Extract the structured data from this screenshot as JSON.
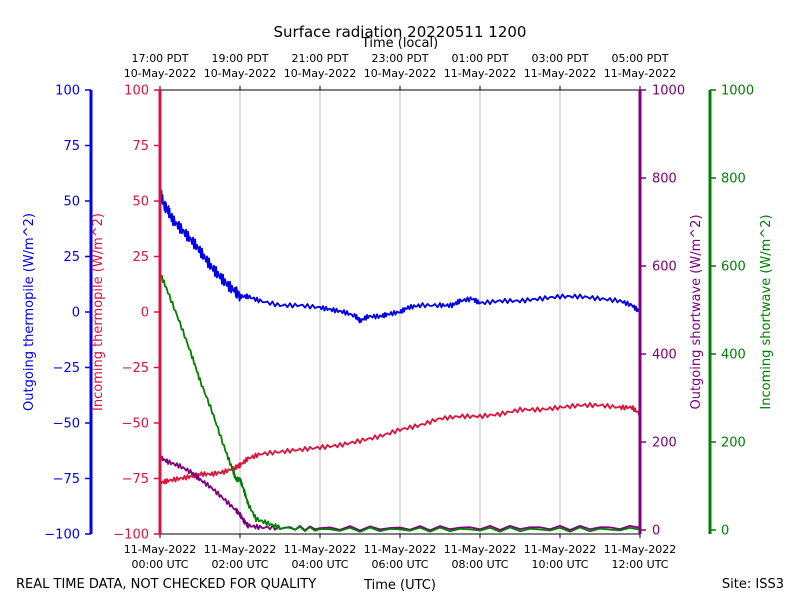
{
  "chart_data": {
    "type": "line",
    "title": "Surface radiation 20220511 1200",
    "top_axis_label": "Time (local)",
    "xlabel": "Time (UTC)",
    "footer_left": "REAL TIME DATA, NOT CHECKED FOR QUALITY",
    "footer_right": "Site: ISS3",
    "x_range_hours_utc": [
      0,
      12
    ],
    "bottom_ticks": [
      {
        "hour": 0,
        "line1": "11-May-2022",
        "line2": "00:00 UTC"
      },
      {
        "hour": 2,
        "line1": "11-May-2022",
        "line2": "02:00 UTC"
      },
      {
        "hour": 4,
        "line1": "11-May-2022",
        "line2": "04:00 UTC"
      },
      {
        "hour": 6,
        "line1": "11-May-2022",
        "line2": "06:00 UTC"
      },
      {
        "hour": 8,
        "line1": "11-May-2022",
        "line2": "08:00 UTC"
      },
      {
        "hour": 10,
        "line1": "11-May-2022",
        "line2": "10:00 UTC"
      },
      {
        "hour": 12,
        "line1": "11-May-2022",
        "line2": "12:00 UTC"
      }
    ],
    "top_ticks": [
      {
        "hour": 0,
        "line1": "17:00 PDT",
        "line2": "10-May-2022"
      },
      {
        "hour": 2,
        "line1": "19:00 PDT",
        "line2": "10-May-2022"
      },
      {
        "hour": 4,
        "line1": "21:00 PDT",
        "line2": "10-May-2022"
      },
      {
        "hour": 6,
        "line1": "23:00 PDT",
        "line2": "10-May-2022"
      },
      {
        "hour": 8,
        "line1": "01:00 PDT",
        "line2": "11-May-2022"
      },
      {
        "hour": 10,
        "line1": "03:00 PDT",
        "line2": "11-May-2022"
      },
      {
        "hour": 12,
        "line1": "05:00 PDT",
        "line2": "11-May-2022"
      }
    ],
    "grid": "vertical",
    "axes": {
      "outgoing_thermopile": {
        "label": "Outgoing thermopile (W/m^2)",
        "color": "#0000ee",
        "range": [
          -100,
          100
        ],
        "ticks": [
          "100",
          "75",
          "50",
          "25",
          "0",
          "−25",
          "−50",
          "−75",
          "−100"
        ],
        "tick_values": [
          100,
          75,
          50,
          25,
          0,
          -25,
          -50,
          -75,
          -100
        ]
      },
      "incoming_thermopile": {
        "label": "Incoming thermopile (W/m^2)",
        "color": "#dc143c",
        "range": [
          -100,
          100
        ],
        "ticks": [
          "100",
          "75",
          "50",
          "25",
          "0",
          "−25",
          "−50",
          "−75",
          "−100"
        ],
        "tick_values": [
          100,
          75,
          50,
          25,
          0,
          -25,
          -50,
          -75,
          -100
        ]
      },
      "outgoing_shortwave": {
        "label": "Outgoing shortwave (W/m^2)",
        "color": "#800080",
        "range": [
          0,
          1000
        ],
        "ticks": [
          "1000",
          "800",
          "600",
          "400",
          "200",
          "0"
        ],
        "tick_values": [
          1000,
          800,
          600,
          400,
          200,
          0
        ]
      },
      "incoming_shortwave": {
        "label": "Incoming shortwave (W/m^2)",
        "color": "#008000",
        "range": [
          0,
          1000
        ],
        "ticks": [
          "1000",
          "800",
          "600",
          "400",
          "200",
          "0"
        ],
        "tick_values": [
          1000,
          800,
          600,
          400,
          200,
          0
        ]
      }
    },
    "series": [
      {
        "axis": "outgoing_thermopile",
        "x": [
          0,
          0.1,
          0.2,
          0.3,
          0.5,
          0.7,
          0.9,
          1.1,
          1.3,
          1.5,
          1.7,
          1.9,
          2.0,
          2.2,
          2.5,
          3.0,
          3.5,
          4.0,
          4.3,
          4.6,
          4.9,
          5.0,
          5.2,
          5.5,
          5.7,
          6.0,
          6.2,
          6.5,
          7.0,
          7.3,
          7.5,
          7.8,
          8.0,
          8.5,
          9.0,
          9.5,
          10.0,
          10.5,
          11.0,
          11.5,
          11.8,
          12.0
        ],
        "y": [
          55,
          48,
          46,
          42,
          38,
          34,
          30,
          25,
          20,
          16,
          12,
          9,
          7,
          7,
          5,
          3,
          3,
          2,
          1,
          0,
          -2,
          -4,
          -2,
          -2,
          -1,
          0,
          2,
          3,
          3,
          3,
          5,
          6,
          4,
          5,
          5,
          6,
          7,
          7,
          6,
          5,
          3,
          0
        ]
      },
      {
        "axis": "incoming_thermopile",
        "x": [
          0,
          0.2,
          0.5,
          0.8,
          1.0,
          1.3,
          1.6,
          1.9,
          2.0,
          2.2,
          2.5,
          3.0,
          3.5,
          4.0,
          4.5,
          5.0,
          5.5,
          6.0,
          6.5,
          7.0,
          7.5,
          8.0,
          8.5,
          9.0,
          9.5,
          10.0,
          10.5,
          11.0,
          11.5,
          11.8,
          12.0
        ],
        "y": [
          -77,
          -76,
          -75,
          -74,
          -73,
          -73,
          -72,
          -70,
          -69,
          -66,
          -64,
          -63,
          -62,
          -61,
          -60,
          -58,
          -56,
          -53,
          -51,
          -48,
          -47,
          -47,
          -46,
          -44,
          -44,
          -43,
          -42,
          -42,
          -43,
          -43,
          -46
        ]
      },
      {
        "axis": "outgoing_shortwave",
        "x": [
          0,
          0.2,
          0.5,
          0.8,
          1.0,
          1.3,
          1.6,
          1.9,
          2.0,
          2.1,
          2.2,
          2.5,
          3.0,
          4.0,
          6.0,
          8.0,
          10.0,
          12.0
        ],
        "y": [
          165,
          155,
          145,
          130,
          115,
          95,
          70,
          45,
          35,
          20,
          10,
          6,
          5,
          4,
          4,
          5,
          5,
          5
        ]
      },
      {
        "axis": "incoming_shortwave",
        "x": [
          0,
          0.2,
          0.5,
          0.8,
          1.0,
          1.3,
          1.6,
          1.8,
          1.9,
          2.0,
          2.1,
          2.2,
          2.4,
          2.7,
          3.0,
          4.0,
          6.0,
          8.0,
          10.0,
          12.0
        ],
        "y": [
          585,
          540,
          470,
          395,
          340,
          270,
          190,
          140,
          115,
          115,
          90,
          60,
          25,
          15,
          5,
          1,
          1,
          1,
          1,
          1
        ]
      }
    ]
  }
}
